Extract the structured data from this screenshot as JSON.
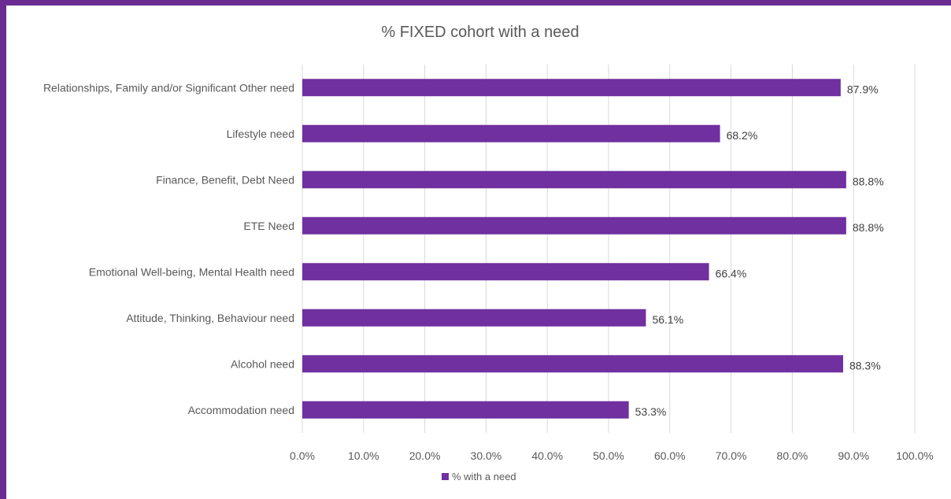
{
  "chart_data": {
    "type": "bar",
    "orientation": "horizontal",
    "title": "% FIXED cohort with a need",
    "categories": [
      "Relationships, Family and/or Significant Other need",
      "Lifestyle need",
      "Finance, Benefit, Debt Need",
      "ETE Need",
      "Emotional Well-being, Mental Health need",
      "Attitude, Thinking, Behaviour need",
      "Alcohol need",
      "Accommodation need"
    ],
    "series": [
      {
        "name": "% with a need",
        "values": [
          87.9,
          68.2,
          88.8,
          88.8,
          66.4,
          56.1,
          88.3,
          53.3
        ],
        "data_labels": [
          "87.9%",
          "68.2%",
          "88.8%",
          "88.8%",
          "66.4%",
          "56.1%",
          "88.3%",
          "53.3%"
        ]
      }
    ],
    "xlim": [
      0,
      100
    ],
    "x_ticks": [
      "0.0%",
      "10.0%",
      "20.0%",
      "30.0%",
      "40.0%",
      "50.0%",
      "60.0%",
      "70.0%",
      "80.0%",
      "90.0%",
      "100.0%"
    ],
    "grid": true,
    "legend_position": "bottom",
    "colors": {
      "bar": "#7030a0",
      "frame": "#6a2c91"
    }
  }
}
